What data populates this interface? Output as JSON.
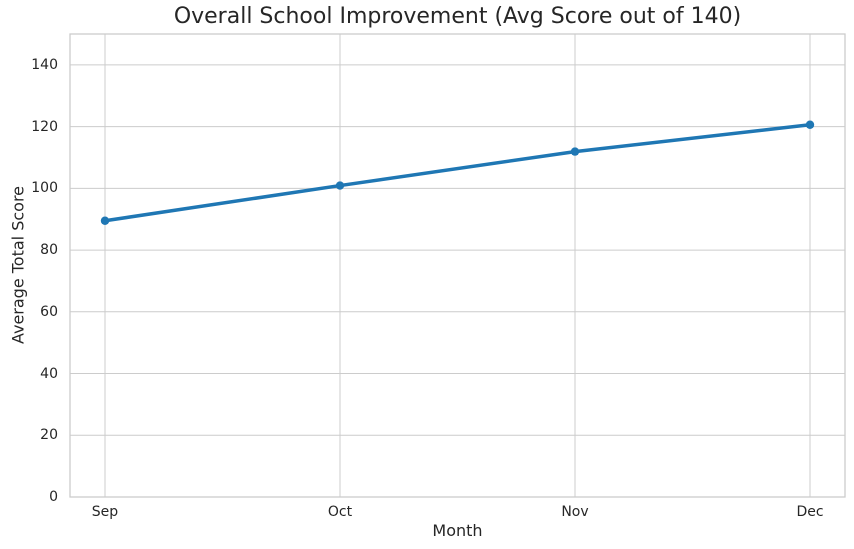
{
  "chart_data": {
    "type": "line",
    "title": "Overall School Improvement (Avg Score out of 140)",
    "xlabel": "Month",
    "ylabel": "Average Total Score",
    "categories": [
      "Sep",
      "Oct",
      "Nov",
      "Dec"
    ],
    "series": [
      {
        "name": "Average Total Score",
        "values": [
          89.5,
          100.9,
          111.9,
          120.6
        ]
      }
    ],
    "ylim": [
      0,
      150
    ],
    "yticks": [
      0,
      20,
      40,
      60,
      80,
      100,
      120,
      140
    ],
    "grid": true,
    "legend": false,
    "marker": "circle",
    "colors": {
      "line": "#1f77b4",
      "grid": "#cccccc",
      "spine": "#cccccc",
      "text": "#262626",
      "background": "#ffffff"
    }
  }
}
